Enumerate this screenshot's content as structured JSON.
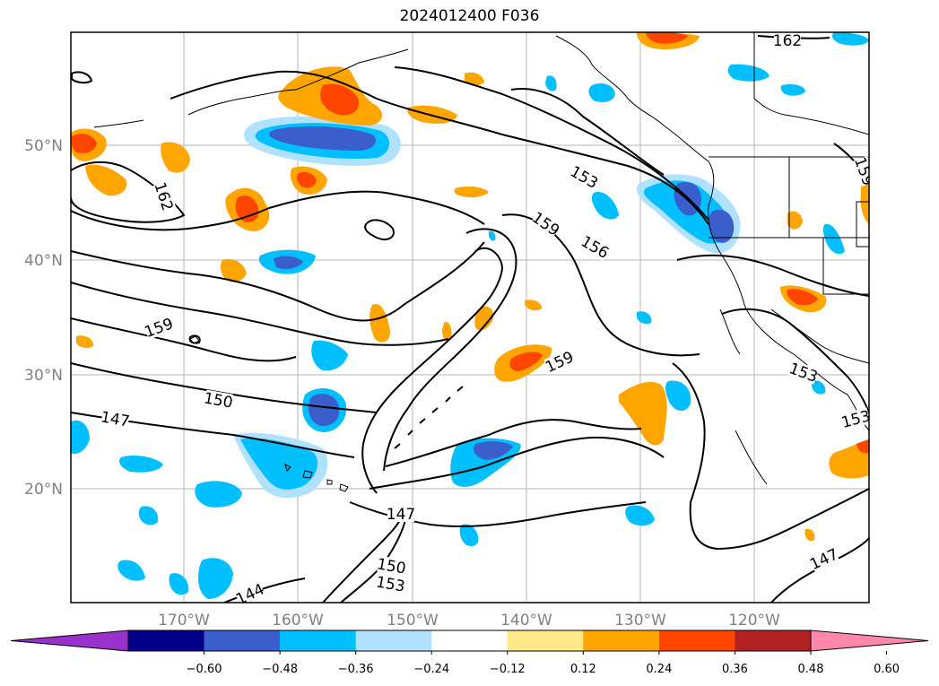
{
  "title": "2024012400 F036",
  "lat_labels": [
    "50°N",
    "40°N",
    "30°N",
    "20°N"
  ],
  "lon_labels": [
    "170°W",
    "160°W",
    "150°W",
    "140°W",
    "130°W",
    "120°W"
  ],
  "contour_labels": [
    "162",
    "162",
    "153",
    "159",
    "156",
    "159",
    "150",
    "147",
    "159",
    "153",
    "153",
    "159",
    "147",
    "150",
    "153",
    "144",
    "147"
  ],
  "colorbar": {
    "ticks": [
      "−0.60",
      "−0.48",
      "−0.36",
      "−0.24",
      "−0.12",
      "0.12",
      "0.24",
      "0.36",
      "0.48",
      "0.60"
    ],
    "colors": [
      "#9932cc",
      "#00008b",
      "#3a5fcd",
      "#00bfff",
      "#b0e2ff",
      "#ffffff",
      "#ffe888",
      "#ffa500",
      "#ff4500",
      "#b22222",
      "#ff88aa"
    ]
  }
}
